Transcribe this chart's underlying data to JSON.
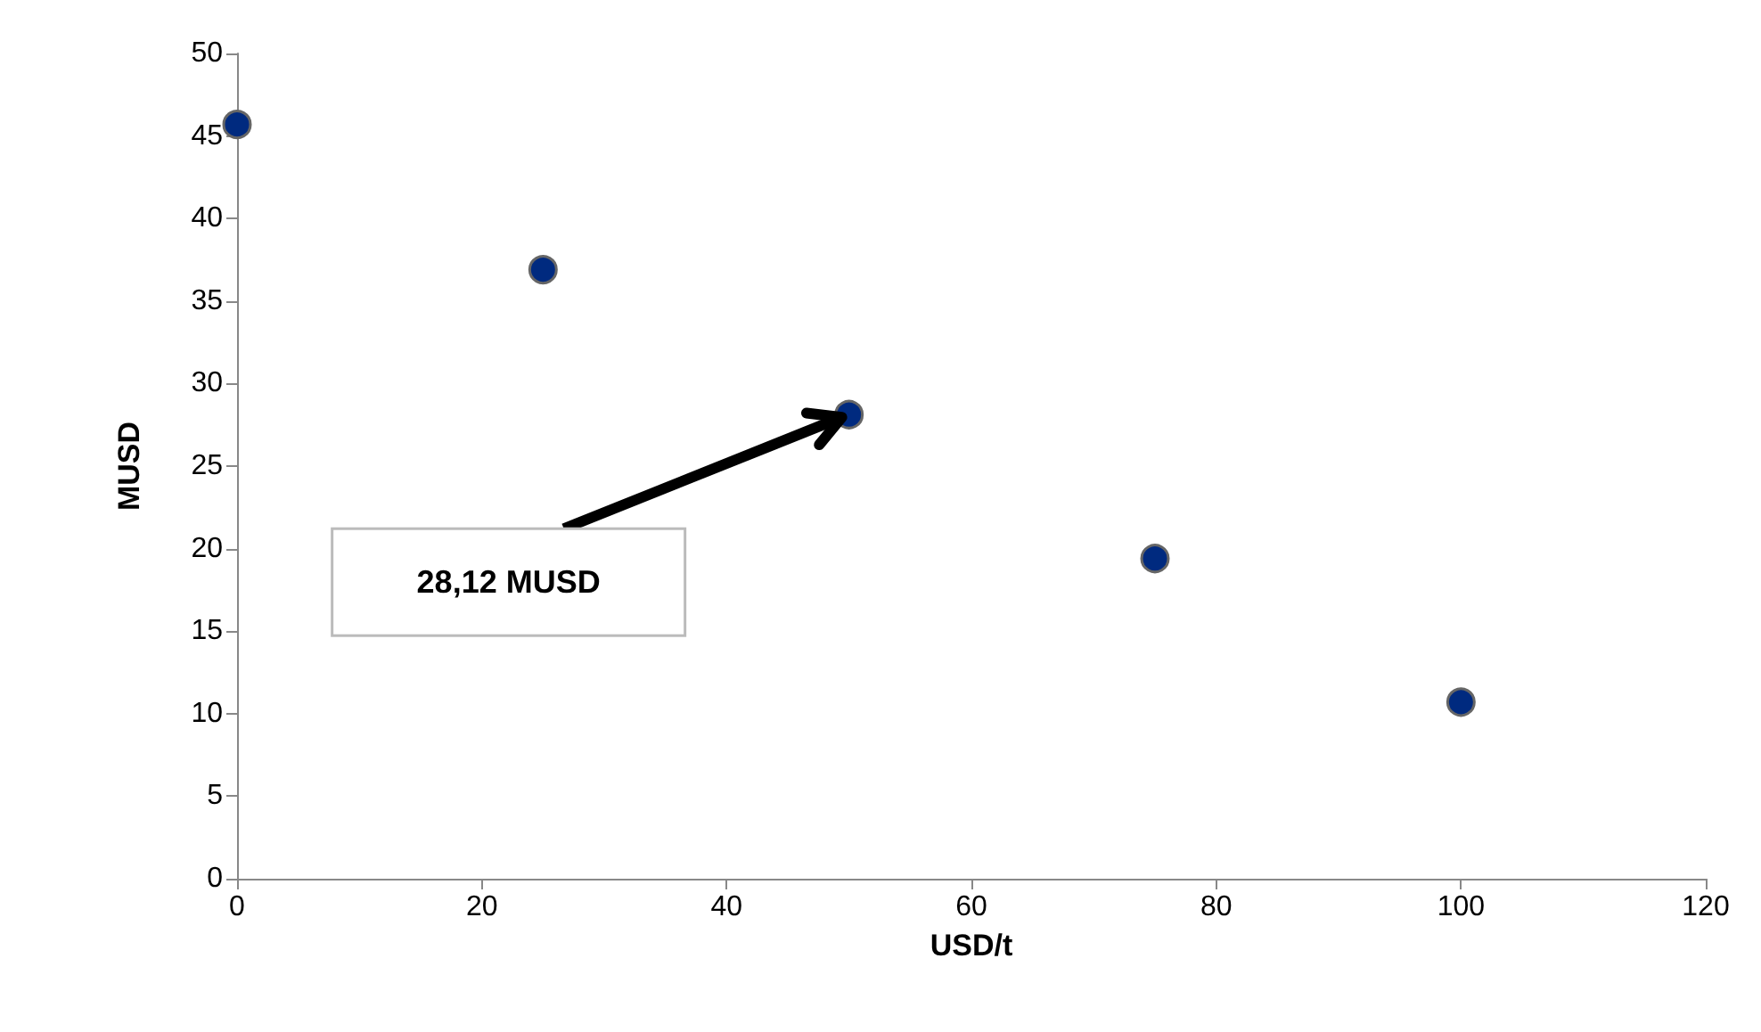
{
  "chart_data": {
    "type": "scatter",
    "xlabel": "USD/t",
    "ylabel": "MUSD",
    "x": [
      0,
      25,
      50,
      75,
      100
    ],
    "series": [
      {
        "color": "#002a7f",
        "values": [
          45.7,
          36.9,
          28.12,
          19.4,
          10.7
        ]
      }
    ],
    "xlim": [
      0,
      120
    ],
    "xticks": [
      0,
      20,
      40,
      60,
      80,
      100,
      120
    ],
    "ylim": [
      0,
      50
    ],
    "yticks": [
      0,
      5,
      10,
      15,
      20,
      25,
      30,
      35,
      40,
      45,
      50
    ],
    "grid": false,
    "marker": "circle",
    "annotations": [
      {
        "text": "28,12 MUSD",
        "x": 50,
        "y": 28.12
      }
    ]
  }
}
